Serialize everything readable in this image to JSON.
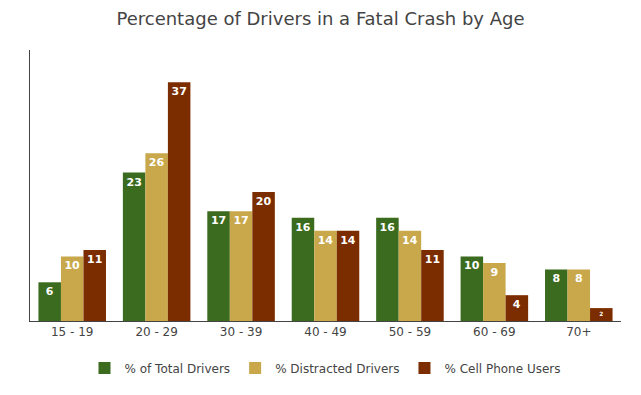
{
  "chart_data": {
    "type": "bar",
    "title": "Percentage of Drivers in a Fatal Crash by Age",
    "categories": [
      "15 - 19",
      "20 - 29",
      "30 - 39",
      "40 - 49",
      "50 - 59",
      "60 - 69",
      "70+"
    ],
    "series": [
      {
        "name": "% of Total Drivers",
        "color": "#3a6b1e",
        "values": [
          6,
          23,
          17,
          16,
          16,
          10,
          8
        ]
      },
      {
        "name": "% Distracted Drivers",
        "color": "#c8a84b",
        "values": [
          10,
          26,
          17,
          14,
          14,
          9,
          8
        ]
      },
      {
        "name": "% Cell Phone Users",
        "color": "#7b2d00",
        "values": [
          11,
          37,
          20,
          14,
          11,
          4,
          2
        ]
      }
    ],
    "ylim": [
      0,
      42
    ],
    "grid": false,
    "legend": "bottom",
    "data_labels": true,
    "tick_labels": "x"
  }
}
